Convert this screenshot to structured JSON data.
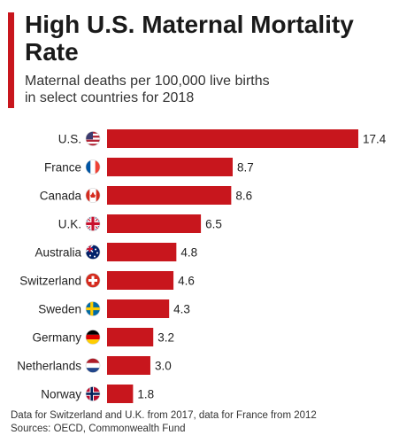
{
  "title": "High U.S. Maternal Mortality Rate",
  "subtitle_lines": [
    "Maternal deaths per 100,000 live births",
    "in select countries for 2018"
  ],
  "footer": {
    "note": "Data for Switzerland and U.K. from 2017, data for France from 2012",
    "sources": "Sources: OECD, Commonwealth Fund"
  },
  "colors": {
    "bar": "#c8161d",
    "accent": "#c8161d"
  },
  "chart_data": {
    "type": "bar",
    "orientation": "horizontal",
    "categories": [
      "U.S.",
      "France",
      "Canada",
      "U.K.",
      "Australia",
      "Switzerland",
      "Sweden",
      "Germany",
      "Netherlands",
      "Norway"
    ],
    "flag_icons": [
      "us-flag-icon",
      "france-flag-icon",
      "canada-flag-icon",
      "uk-flag-icon",
      "australia-flag-icon",
      "switzerland-flag-icon",
      "sweden-flag-icon",
      "germany-flag-icon",
      "netherlands-flag-icon",
      "norway-flag-icon"
    ],
    "values": [
      17.4,
      8.7,
      8.6,
      6.5,
      4.8,
      4.6,
      4.3,
      3.2,
      3.0,
      1.8
    ],
    "value_labels": [
      "17.4",
      "8.7",
      "8.6",
      "6.5",
      "4.8",
      "4.6",
      "4.3",
      "3.2",
      "3.0",
      "1.8"
    ],
    "xlim": [
      0,
      17.4
    ],
    "grid": false,
    "legend": "none"
  }
}
